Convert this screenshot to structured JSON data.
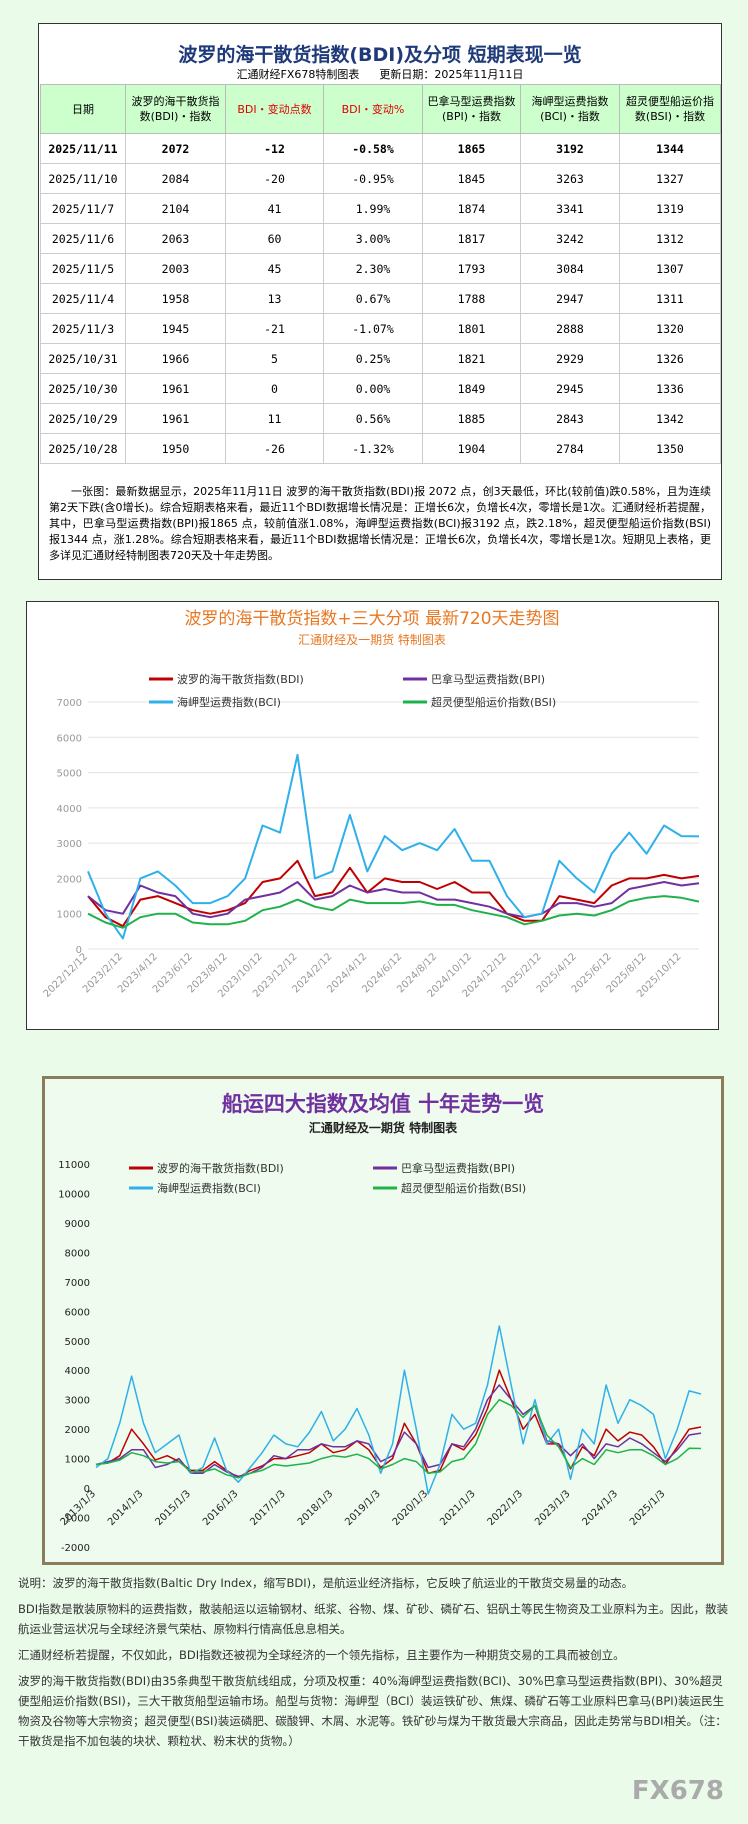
{
  "summary_table": {
    "title": "波罗的海干散货指数(BDI)及分项  短期表现一览",
    "source": "汇通财经FX678特制图表",
    "updated": "更新日期：2025年11月11日",
    "columns": [
      "日期",
      "波罗的海干散货指数(BDI)・指数",
      "BDI・变动点数",
      "BDI・变动%",
      "巴拿马型运费指数(BPI)・指数",
      "海岬型运费指数(BCI)・指数",
      "超灵便型船运价指数(BSI)・指数"
    ],
    "rows": [
      [
        "2025/11/11",
        "2072",
        "-12",
        "-0.58%",
        "1865",
        "3192",
        "1344"
      ],
      [
        "2025/11/10",
        "2084",
        "-20",
        "-0.95%",
        "1845",
        "3263",
        "1327"
      ],
      [
        "2025/11/7",
        "2104",
        "41",
        "1.99%",
        "1874",
        "3341",
        "1319"
      ],
      [
        "2025/11/6",
        "2063",
        "60",
        "3.00%",
        "1817",
        "3242",
        "1312"
      ],
      [
        "2025/11/5",
        "2003",
        "45",
        "2.30%",
        "1793",
        "3084",
        "1307"
      ],
      [
        "2025/11/4",
        "1958",
        "13",
        "0.67%",
        "1788",
        "2947",
        "1311"
      ],
      [
        "2025/11/3",
        "1945",
        "-21",
        "-1.07%",
        "1801",
        "2888",
        "1320"
      ],
      [
        "2025/10/31",
        "1966",
        "5",
        "0.25%",
        "1821",
        "2929",
        "1326"
      ],
      [
        "2025/10/30",
        "1961",
        "0",
        "0.00%",
        "1849",
        "2945",
        "1336"
      ],
      [
        "2025/10/29",
        "1961",
        "11",
        "0.56%",
        "1885",
        "2843",
        "1342"
      ],
      [
        "2025/10/28",
        "1950",
        "-26",
        "-1.32%",
        "1904",
        "2784",
        "1350"
      ]
    ],
    "summary": "一张图：最新数据显示，2025年11月11日 波罗的海干散货指数(BDI)报 2072 点，创3天最低，环比(较前值)跌0.58%，且为连续第2天下跌(含0增长)。综合短期表格来看，最近11个BDI数据增长情况是：正增长6次，负增长4次，零增长是1次。汇通财经析若提醒，其中，巴拿马型运费指数(BPI)报1865 点，较前值涨1.08%，海岬型运费指数(BCI)报3192 点，跌2.18%，超灵便型船运价指数(BSI)报1344 点，涨1.28%。综合短期表格来看，最近11个BDI数据增长情况是：正增长6次，负增长4次，零增长是1次。短期见上表格，更多详见汇通财经特制图表720天及十年走势图。"
  },
  "chart_data": [
    {
      "type": "line",
      "title": "波罗的海干散货指数+三大分项  最新720天走势图",
      "subtitle": "汇通财经及一期货  特制图表",
      "categories": [
        "2022/12/12",
        null,
        "2023/2/12",
        null,
        "2023/4/12",
        null,
        "2023/6/12",
        null,
        "2023/8/12",
        null,
        "2023/10/12",
        null,
        "2023/12/12",
        null,
        "2024/2/12",
        null,
        "2024/4/12",
        null,
        "2024/6/12",
        null,
        "2024/8/12",
        null,
        "2024/10/12",
        null,
        "2024/12/12",
        null,
        "2025/2/12",
        null,
        "2025/4/12",
        null,
        "2025/6/12",
        null,
        "2025/8/12",
        null,
        "2025/10/12",
        null
      ],
      "series": [
        {
          "name": "波罗的海干散货指数(BDI)",
          "color": "#c00000",
          "values": [
            1500,
            900,
            650,
            1400,
            1500,
            1300,
            1100,
            1000,
            1100,
            1300,
            1900,
            2000,
            2500,
            1500,
            1600,
            2300,
            1600,
            2000,
            1900,
            1900,
            1700,
            1900,
            1600,
            1600,
            1000,
            800,
            800,
            1500,
            1400,
            1300,
            1800,
            2000,
            2000,
            2100,
            2000,
            2072
          ]
        },
        {
          "name": "巴拿马型运费指数(BPI)",
          "color": "#7030a0",
          "values": [
            1500,
            1100,
            1000,
            1800,
            1600,
            1500,
            1000,
            900,
            1000,
            1400,
            1500,
            1600,
            1900,
            1400,
            1500,
            1800,
            1600,
            1700,
            1600,
            1600,
            1400,
            1400,
            1300,
            1200,
            1000,
            900,
            1000,
            1300,
            1300,
            1200,
            1300,
            1700,
            1800,
            1900,
            1800,
            1865
          ]
        },
        {
          "name": "海岬型运费指数(BCI)",
          "color": "#2fb0ea",
          "values": [
            2200,
            1000,
            300,
            2000,
            2200,
            1800,
            1300,
            1300,
            1500,
            2000,
            3500,
            3300,
            5500,
            2000,
            2200,
            3800,
            2200,
            3200,
            2800,
            3000,
            2800,
            3400,
            2500,
            2500,
            1500,
            900,
            1000,
            2500,
            2000,
            1600,
            2700,
            3300,
            2700,
            3500,
            3200,
            3192
          ]
        },
        {
          "name": "超灵便型船运价指数(BSI)",
          "color": "#21b14b",
          "values": [
            1000,
            750,
            600,
            900,
            1000,
            1000,
            750,
            700,
            700,
            800,
            1100,
            1200,
            1400,
            1200,
            1100,
            1400,
            1300,
            1300,
            1300,
            1350,
            1250,
            1250,
            1100,
            1000,
            900,
            700,
            800,
            950,
            1000,
            950,
            1100,
            1350,
            1450,
            1500,
            1450,
            1344
          ]
        }
      ],
      "ylim": [
        0,
        7000
      ],
      "yticks": [
        0,
        1000,
        2000,
        3000,
        4000,
        5000,
        6000,
        7000
      ],
      "grid": true
    },
    {
      "type": "line",
      "title": "船运四大指数及均值 十年走势一览",
      "subtitle": "汇通财经及一期货 特制图表",
      "categories": [
        "2013/1/3",
        null,
        null,
        null,
        "2014/1/3",
        null,
        null,
        null,
        "2015/1/3",
        null,
        null,
        null,
        "2016/1/3",
        null,
        null,
        null,
        "2017/1/3",
        null,
        null,
        null,
        "2018/1/3",
        null,
        null,
        null,
        "2019/1/3",
        null,
        null,
        null,
        "2020/1/3",
        null,
        null,
        null,
        "2021/1/3",
        null,
        null,
        null,
        "2022/1/3",
        null,
        null,
        null,
        "2023/1/3",
        null,
        null,
        null,
        "2024/1/3",
        null,
        null,
        null,
        "2025/1/3",
        null,
        null,
        null
      ],
      "series": [
        {
          "name": "波罗的海干散货指数(BDI)",
          "color": "#c00000",
          "values": [
            800,
            850,
            1100,
            2000,
            1500,
            950,
            1100,
            900,
            600,
            600,
            900,
            600,
            350,
            600,
            750,
            1000,
            1000,
            1100,
            1200,
            1500,
            1200,
            1300,
            1600,
            1300,
            700,
            1000,
            2200,
            1500,
            500,
            600,
            1500,
            1300,
            1800,
            2700,
            4000,
            3000,
            2000,
            2500,
            1500,
            1500,
            650,
            1400,
            1100,
            2000,
            1600,
            1900,
            1800,
            1400,
            800,
            1400,
            2000,
            2072
          ]
        },
        {
          "name": "巴拿马型运费指数(BPI)",
          "color": "#7030a0",
          "values": [
            800,
            900,
            1000,
            1300,
            1300,
            700,
            800,
            1000,
            500,
            500,
            800,
            550,
            400,
            500,
            700,
            1100,
            1000,
            1300,
            1300,
            1500,
            1400,
            1400,
            1600,
            1500,
            900,
            1100,
            1900,
            1500,
            700,
            800,
            1500,
            1400,
            2000,
            3000,
            3500,
            3000,
            2500,
            2800,
            1600,
            1500,
            1100,
            1500,
            1000,
            1500,
            1400,
            1700,
            1500,
            1200,
            900,
            1300,
            1800,
            1865
          ]
        },
        {
          "name": "海岬型运费指数(BCI)",
          "color": "#2fb0ea",
          "values": [
            700,
            1000,
            2200,
            3800,
            2200,
            1200,
            1500,
            1800,
            500,
            700,
            1700,
            600,
            200,
            700,
            1200,
            1800,
            1500,
            1400,
            1900,
            2600,
            1600,
            2000,
            2700,
            1800,
            500,
            1500,
            4000,
            2000,
            -200,
            800,
            2500,
            2000,
            2200,
            3500,
            5500,
            3500,
            1500,
            3000,
            1500,
            2000,
            300,
            2000,
            1500,
            3500,
            2200,
            3000,
            2800,
            2500,
            1000,
            2000,
            3300,
            3192
          ]
        },
        {
          "name": "超灵便型船运价指数(BSI)",
          "color": "#21b14b",
          "values": [
            800,
            850,
            950,
            1200,
            1100,
            900,
            850,
            900,
            550,
            550,
            650,
            450,
            350,
            500,
            600,
            800,
            750,
            800,
            850,
            1000,
            1100,
            1050,
            1150,
            1000,
            650,
            800,
            1000,
            900,
            500,
            550,
            900,
            1000,
            1500,
            2500,
            3000,
            2800,
            2400,
            2800,
            1800,
            1400,
            700,
            1000,
            800,
            1300,
            1200,
            1300,
            1300,
            1100,
            800,
            1000,
            1350,
            1344
          ]
        }
      ],
      "ylim": [
        -2000,
        11000
      ],
      "yticks": [
        -2000,
        -1000,
        0,
        1000,
        2000,
        3000,
        4000,
        5000,
        6000,
        7000,
        8000,
        9000,
        10000,
        11000
      ],
      "grid": false
    }
  ],
  "notes": [
    "说明：波罗的海干散货指数(Baltic Dry Index，缩写BDI)，是航运业经济指标，它反映了航运业的干散货交易量的动态。",
    "BDI指数是散装原物料的运费指数，散装船运以运输钢材、纸浆、谷物、煤、矿砂、磷矿石、铝矾土等民生物资及工业原料为主。因此，散装航运业营运状况与全球经济景气荣枯、原物料行情高低息息相关。",
    "汇通财经析若提醒，不仅如此，BDI指数还被视为全球经济的一个领先指标，且主要作为一种期货交易的工具而被创立。",
    "波罗的海干散货指数(BDI)由35条典型干散货航线组成，分项及权重：40%海岬型运费指数(BCI)、30%巴拿马型运费指数(BPI)、30%超灵便型船运价指数(BSI)，三大干散货船型运输市场。船型与货物：海岬型（BCI）装运铁矿砂、焦煤、磷矿石等工业原料巴拿马(BPI)装运民生物资及谷物等大宗物资；超灵便型(BSI)装运磷肥、碳酸钾、木屑、水泥等。铁矿砂与煤为干散货最大宗商品，因此走势常与BDI相关。（注：干散货是指不加包装的块状、颗粒状、粉末状的货物。）"
  ],
  "logo": "FX678"
}
